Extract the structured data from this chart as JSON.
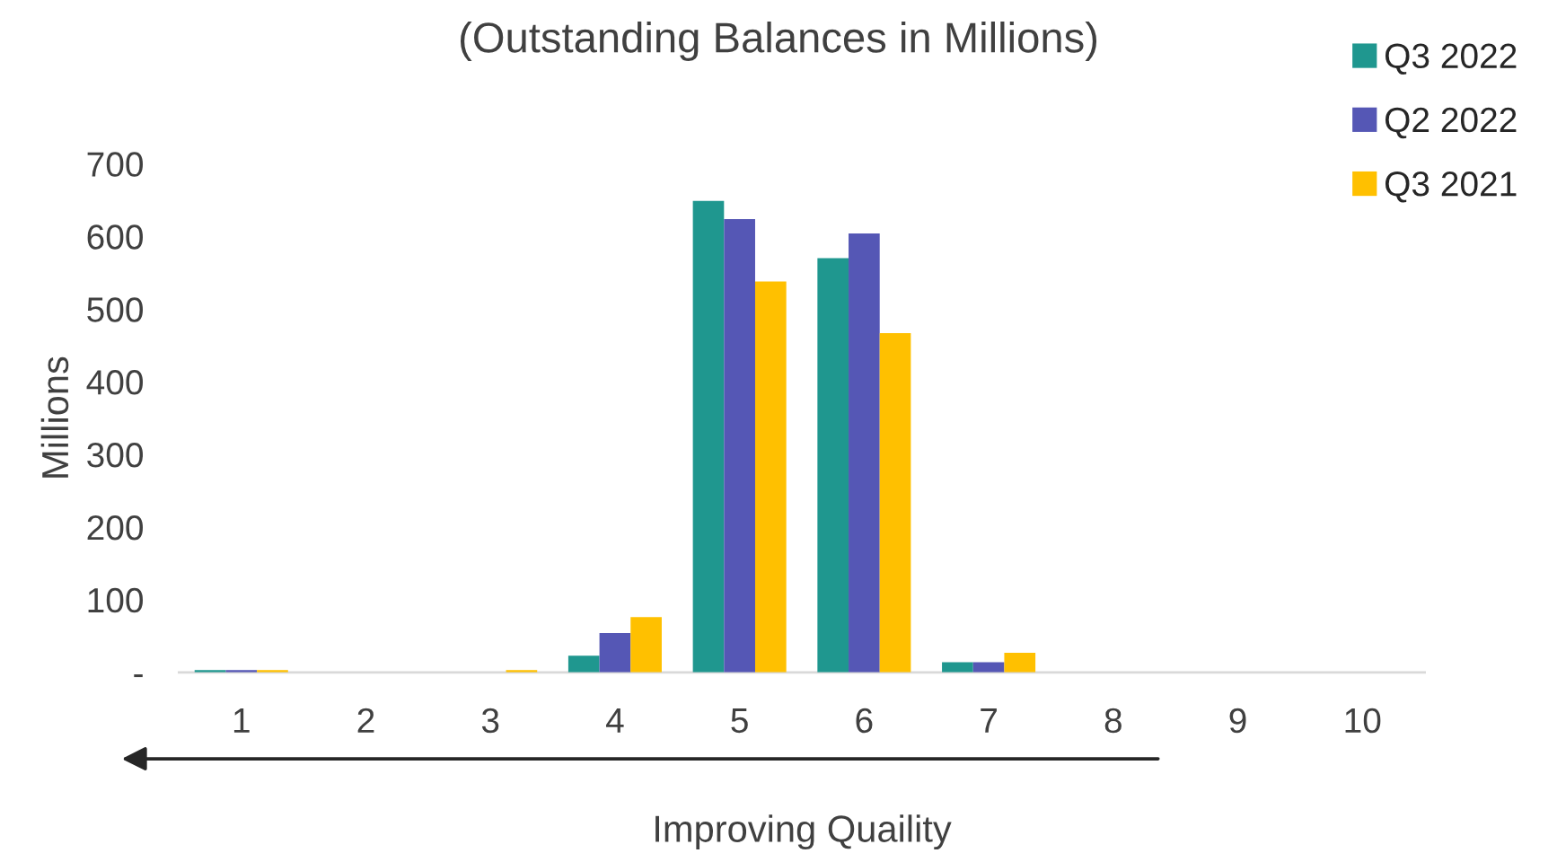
{
  "chart_data": {
    "type": "bar",
    "title": "(Outstanding Balances in Millions)",
    "ylabel": "Millions",
    "xlabel": "Improving Quaility",
    "categories": [
      "1",
      "2",
      "3",
      "4",
      "5",
      "6",
      "7",
      "8",
      "9",
      "10"
    ],
    "series": [
      {
        "name": "Q3 2022",
        "color": "#1f978f",
        "values": [
          3,
          null,
          null,
          23,
          649,
          570,
          14,
          null,
          null,
          null
        ]
      },
      {
        "name": "Q2 2022",
        "color": "#5557b5",
        "values": [
          3,
          null,
          null,
          54,
          624,
          604,
          14,
          null,
          null,
          null
        ]
      },
      {
        "name": "Q3 2021",
        "color": "#ffc000",
        "values": [
          3,
          null,
          3,
          76,
          538,
          467,
          27,
          null,
          null,
          null
        ]
      }
    ],
    "ylim": [
      0,
      700
    ],
    "yticks": [
      {
        "value": 0,
        "label": "-"
      },
      100,
      200,
      300,
      400,
      500,
      600,
      700
    ],
    "grid": false,
    "legend": "top right"
  }
}
